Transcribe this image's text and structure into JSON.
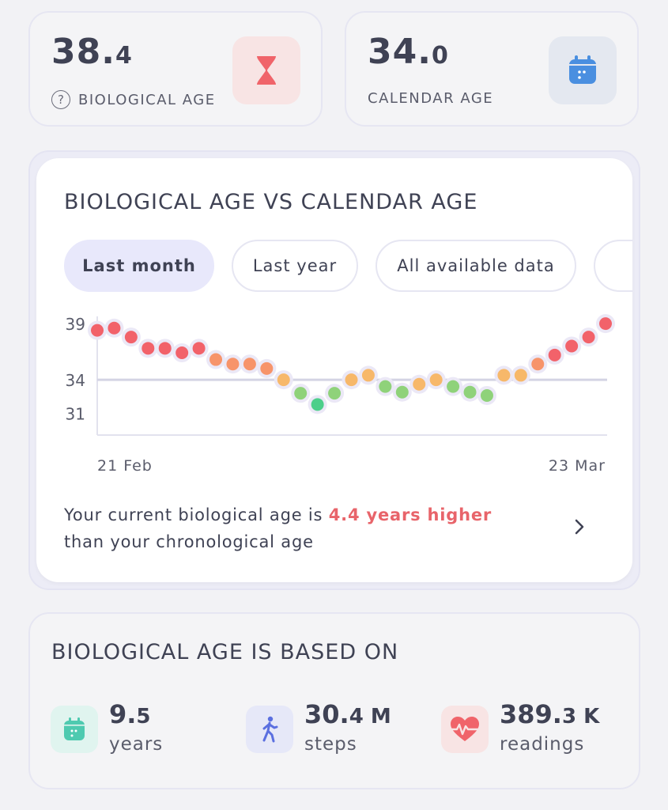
{
  "biological": {
    "value_int": "38.",
    "value_dec": "4",
    "help_symbol": "?",
    "label": "BIOLOGICAL AGE",
    "icon": "hourglass-icon",
    "icon_color": "#f0646a",
    "icon_bg": "#f8e4e4"
  },
  "calendar": {
    "value_int": "34.",
    "value_dec": "0",
    "label": "CALENDAR AGE",
    "icon": "calendar-icon",
    "icon_color": "#4a8fe0",
    "icon_bg": "#e4e8f0"
  },
  "chart_card": {
    "title": "BIOLOGICAL AGE VS CALENDAR AGE",
    "tabs": [
      "Last month",
      "Last year",
      "All available data",
      ""
    ],
    "active_tab": 0,
    "summary_prefix": "Your current biological age is ",
    "summary_highlight": "4.4 years higher",
    "summary_suffix": "than your chronological age",
    "highlight_color": "#e8646a"
  },
  "chart_data": {
    "type": "scatter",
    "title": "",
    "xlabel": "",
    "ylabel": "",
    "x_tick_labels": [
      "21 Feb",
      "23 Mar"
    ],
    "y_tick_labels": [
      "39",
      "34",
      "31"
    ],
    "y_ticks": [
      39,
      34,
      31
    ],
    "ylim": [
      29.5,
      39.5
    ],
    "reference_line": {
      "name": "calendar age",
      "value": 34.0
    },
    "series": [
      {
        "values": [
          38.4,
          38.6,
          37.8,
          36.8,
          36.8,
          36.4,
          36.8,
          35.8,
          35.4,
          35.4,
          35.0,
          34.0,
          32.8,
          31.8,
          32.8,
          34.0,
          34.4,
          33.4,
          32.9,
          33.6,
          34.0,
          33.4,
          32.9,
          32.6,
          34.4,
          34.4,
          35.4,
          36.2,
          37.0,
          37.8,
          39.0
        ],
        "colors": [
          "#f2626a",
          "#f2626a",
          "#f2626a",
          "#f2626a",
          "#f2626a",
          "#f2626a",
          "#f2626a",
          "#f7946a",
          "#f7946a",
          "#f7946a",
          "#f7946a",
          "#f7b86a",
          "#8fd27a",
          "#4dcf8a",
          "#8fd27a",
          "#f7b86a",
          "#f7b86a",
          "#8fd27a",
          "#8fd27a",
          "#f7b86a",
          "#f7b86a",
          "#8fd27a",
          "#8fd27a",
          "#8fd27a",
          "#f7b86a",
          "#f7b86a",
          "#f7946a",
          "#f2626a",
          "#f2626a",
          "#f2626a",
          "#f2626a"
        ]
      }
    ],
    "grid": false
  },
  "based_on": {
    "title": "BIOLOGICAL AGE IS BASED ON",
    "metrics": [
      {
        "value_int": "9.",
        "value_dec": "5",
        "unit": "",
        "label": "years",
        "icon": "calendar-icon",
        "icon_color": "#4ecab0",
        "icon_bg": "#e0f4ef"
      },
      {
        "value_int": "30.",
        "value_dec": "4",
        "unit": " M",
        "label": "steps",
        "icon": "walking-person-icon",
        "icon_color": "#5b6fe0",
        "icon_bg": "#e6e8f8"
      },
      {
        "value_int": "389.",
        "value_dec": "3",
        "unit": " K",
        "label": "readings",
        "icon": "heart-rate-icon",
        "icon_color": "#f0646a",
        "icon_bg": "#f8e4e4"
      }
    ]
  }
}
